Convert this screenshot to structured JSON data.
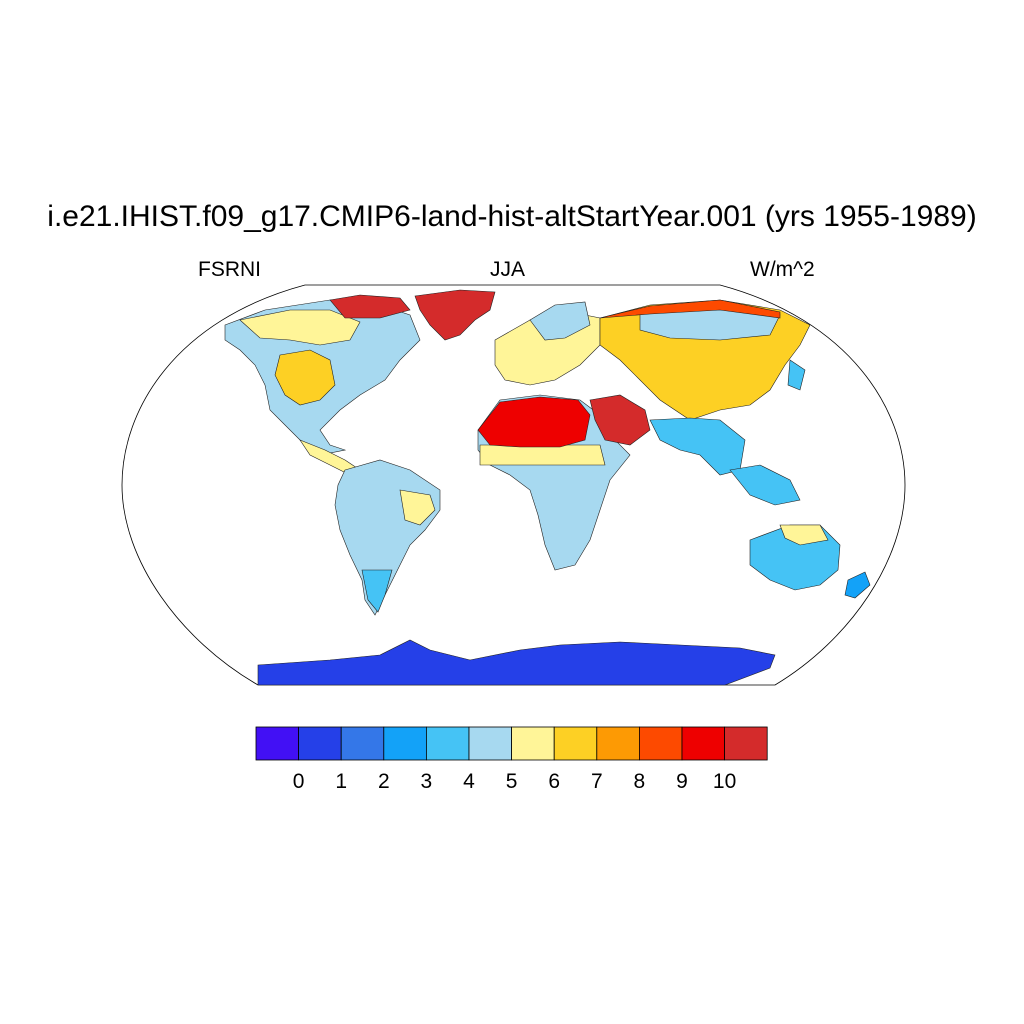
{
  "title": "i.e21.IHIST.f09_g17.CMIP6-land-hist-altStartYear.001 (yrs 1955-1989)",
  "subtitle_left": "FSRNI",
  "subtitle_center": "JJA",
  "subtitle_right": "W/m^2",
  "colorbar": {
    "colors": [
      "#4210f5",
      "#2540e8",
      "#3477e8",
      "#13a2f8",
      "#45c3f5",
      "#a7d9f0",
      "#fff598",
      "#fdd024",
      "#fd9a04",
      "#fd4a00",
      "#ee0000",
      "#d42b2b"
    ],
    "tick_labels": [
      "0",
      "1",
      "2",
      "3",
      "4",
      "5",
      "6",
      "7",
      "8",
      "9",
      "10"
    ]
  },
  "regions": [
    {
      "name": "antarctica",
      "color": "#2540e8"
    },
    {
      "name": "greenland",
      "color": "#d42b2b"
    },
    {
      "name": "sahara",
      "color": "#ee0000"
    },
    {
      "name": "arabia",
      "color": "#d42b2b"
    },
    {
      "name": "central-asia",
      "color": "#fdd024"
    },
    {
      "name": "australia",
      "color": "#45c3f5"
    },
    {
      "name": "south-america",
      "color": "#a7d9f0"
    },
    {
      "name": "north-america",
      "color": "#a7d9f0"
    }
  ]
}
